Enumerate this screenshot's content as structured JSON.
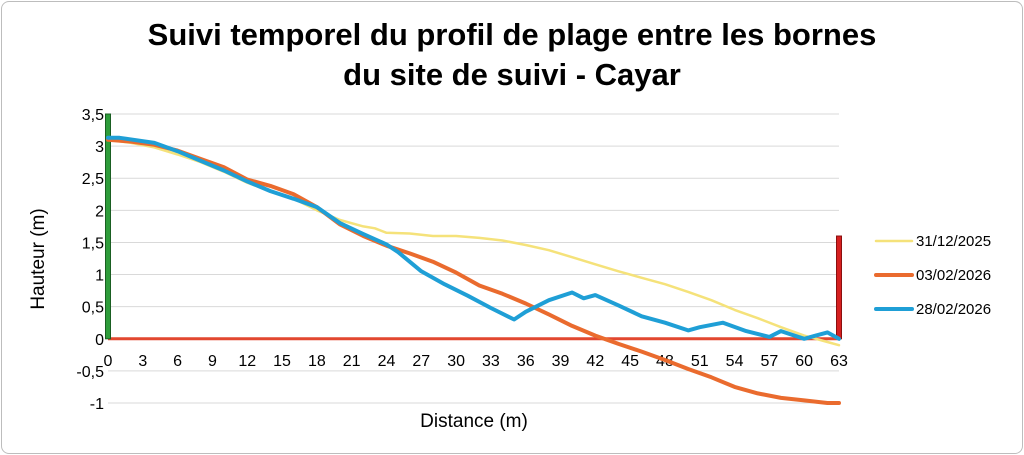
{
  "chart_data": {
    "type": "line",
    "title": [
      "Suivi temporel du profil de plage entre les bornes",
      "du site de suivi - Cayar"
    ],
    "xlabel": "Distance (m)",
    "ylabel": "Hauteur (m)",
    "xlim": [
      0,
      63
    ],
    "ylim": [
      -1,
      3.5
    ],
    "x_ticks": [
      "0",
      "3",
      "6",
      "9",
      "12",
      "15",
      "18",
      "21",
      "24",
      "27",
      "30",
      "33",
      "36",
      "39",
      "42",
      "45",
      "48",
      "51",
      "54",
      "57",
      "60",
      "63"
    ],
    "y_ticks": [
      "3,5",
      "3",
      "2,5",
      "2",
      "1,5",
      "1",
      "0,5",
      "0",
      "-0,5",
      "-1"
    ],
    "grid": "horizontal",
    "legend_position": "right",
    "colors": {
      "series1": "#f5e27a",
      "series2": "#ea6b2e",
      "series3": "#1f9fd6",
      "left_marker": "#2e9c3a",
      "right_marker": "#d62020",
      "zero_line": "#e2472f"
    },
    "series": [
      {
        "name": "31/12/2025",
        "x": [
          0,
          2,
          4,
          6,
          8,
          10,
          12,
          14,
          16,
          18,
          20,
          22,
          23,
          24,
          26,
          28,
          30,
          32,
          34,
          36,
          38,
          40,
          42,
          44,
          46,
          48,
          50,
          52,
          54,
          56,
          58,
          60,
          62,
          63
        ],
        "y": [
          3.1,
          3.05,
          2.98,
          2.87,
          2.75,
          2.6,
          2.43,
          2.3,
          2.18,
          2.0,
          1.85,
          1.75,
          1.72,
          1.65,
          1.64,
          1.6,
          1.6,
          1.57,
          1.53,
          1.46,
          1.38,
          1.27,
          1.16,
          1.05,
          0.95,
          0.85,
          0.73,
          0.6,
          0.45,
          0.32,
          0.18,
          0.05,
          -0.05,
          -0.1
        ]
      },
      {
        "name": "03/02/2026",
        "x": [
          0,
          2,
          4,
          6,
          8,
          10,
          12,
          14,
          16,
          18,
          20,
          22,
          24,
          26,
          28,
          30,
          32,
          34,
          36,
          38,
          40,
          42,
          44,
          46,
          48,
          50,
          52,
          54,
          56,
          58,
          60,
          62,
          63
        ],
        "y": [
          3.1,
          3.07,
          3.02,
          2.93,
          2.8,
          2.67,
          2.48,
          2.38,
          2.25,
          2.05,
          1.78,
          1.6,
          1.45,
          1.33,
          1.2,
          1.03,
          0.83,
          0.7,
          0.55,
          0.38,
          0.2,
          0.05,
          -0.08,
          -0.2,
          -0.33,
          -0.47,
          -0.6,
          -0.75,
          -0.85,
          -0.92,
          -0.96,
          -1.0,
          -1.0
        ]
      },
      {
        "name": "28/02/2026",
        "x": [
          0,
          1,
          4,
          6,
          8,
          10,
          12,
          14,
          16,
          18,
          20,
          22,
          24,
          25,
          27,
          29,
          31,
          33,
          35,
          36,
          38,
          40,
          41,
          42,
          44,
          46,
          48,
          50,
          51,
          53,
          55,
          57,
          58,
          60,
          61,
          62,
          63
        ],
        "y": [
          3.13,
          3.13,
          3.05,
          2.92,
          2.77,
          2.62,
          2.45,
          2.3,
          2.18,
          2.05,
          1.8,
          1.63,
          1.47,
          1.35,
          1.05,
          0.85,
          0.67,
          0.48,
          0.3,
          0.42,
          0.6,
          0.72,
          0.63,
          0.68,
          0.52,
          0.35,
          0.25,
          0.13,
          0.18,
          0.25,
          0.12,
          0.03,
          0.12,
          0.0,
          0.05,
          0.1,
          0.0
        ]
      }
    ]
  }
}
